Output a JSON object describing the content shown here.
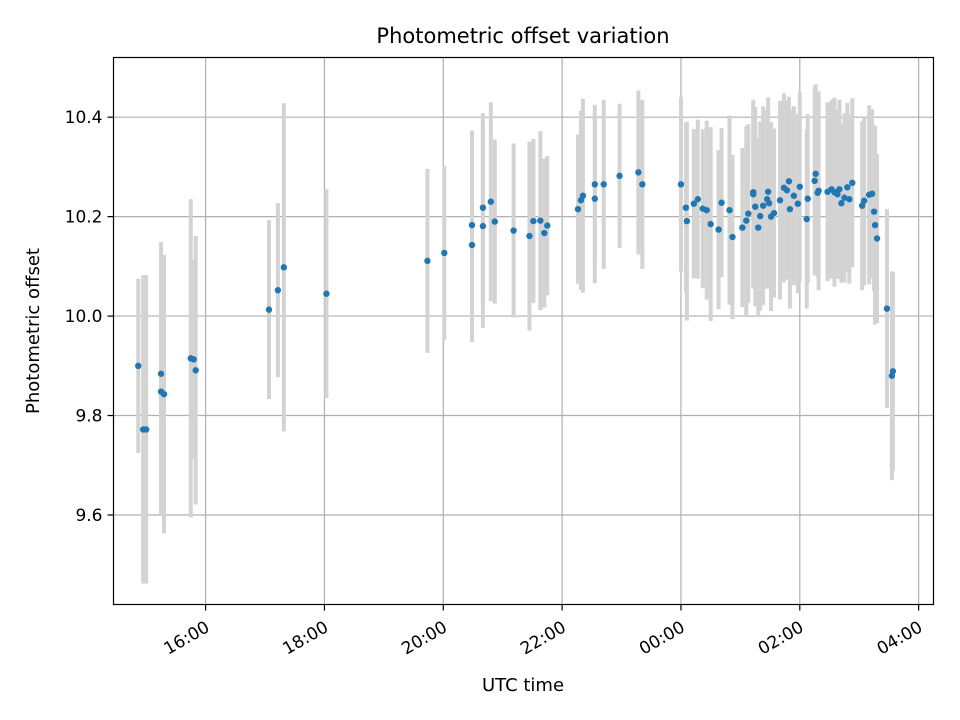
{
  "chart_data": {
    "type": "scatter",
    "title": "Photometric offset variation",
    "xlabel": "UTC time",
    "ylabel": "Photometric offset",
    "x_unit": "UTC time (hours, 16:00 of first day; values above 24 continue after midnight)",
    "xlim": [
      "14:27",
      "28:15"
    ],
    "ylim": [
      9.42,
      10.52
    ],
    "grid": true,
    "x_ticks": [
      {
        "t": "16:00",
        "label": "16:00"
      },
      {
        "t": "18:00",
        "label": "18:00"
      },
      {
        "t": "20:00",
        "label": "20:00"
      },
      {
        "t": "22:00",
        "label": "22:00"
      },
      {
        "t": "24:00",
        "label": "00:00"
      },
      {
        "t": "26:00",
        "label": "02:00"
      },
      {
        "t": "28:00",
        "label": "04:00"
      }
    ],
    "y_ticks": [
      {
        "v": 9.6,
        "label": "9.6"
      },
      {
        "v": 9.8,
        "label": "9.8"
      },
      {
        "v": 10.0,
        "label": "10.0"
      },
      {
        "v": 10.2,
        "label": "10.2"
      },
      {
        "v": 10.4,
        "label": "10.4"
      }
    ],
    "colors": {
      "point": "#1f77b4",
      "errorbar": "#d3d3d3",
      "grid": "#b0b0b0",
      "axes": "#000000"
    },
    "points": [
      {
        "t": "14:52",
        "y": 9.9,
        "err": 0.175
      },
      {
        "t": "14:57",
        "y": 9.772,
        "err": 0.31
      },
      {
        "t": "15:00",
        "y": 9.772,
        "err": 0.31
      },
      {
        "t": "15:15",
        "y": 9.884,
        "err": 0.265
      },
      {
        "t": "15:15",
        "y": 9.848,
        "err": 0.25
      },
      {
        "t": "15:18",
        "y": 9.843,
        "err": 0.28
      },
      {
        "t": "15:45",
        "y": 9.915,
        "err": 0.32
      },
      {
        "t": "15:48",
        "y": 9.913,
        "err": 0.2
      },
      {
        "t": "15:50",
        "y": 9.891,
        "err": 0.27
      },
      {
        "t": "17:04",
        "y": 10.013,
        "err": 0.18
      },
      {
        "t": "17:13",
        "y": 10.052,
        "err": 0.175
      },
      {
        "t": "17:19",
        "y": 10.098,
        "err": 0.33
      },
      {
        "t": "18:02",
        "y": 10.045,
        "err": 0.21
      },
      {
        "t": "19:44",
        "y": 10.111,
        "err": 0.185
      },
      {
        "t": "20:01",
        "y": 10.127,
        "err": 0.175
      },
      {
        "t": "20:29",
        "y": 10.143,
        "err": 0.195
      },
      {
        "t": "20:29",
        "y": 10.183,
        "err": 0.19
      },
      {
        "t": "20:40",
        "y": 10.181,
        "err": 0.205
      },
      {
        "t": "20:40",
        "y": 10.218,
        "err": 0.19
      },
      {
        "t": "20:48",
        "y": 10.23,
        "err": 0.2
      },
      {
        "t": "20:52",
        "y": 10.19,
        "err": 0.165
      },
      {
        "t": "21:11",
        "y": 10.172,
        "err": 0.175
      },
      {
        "t": "21:27",
        "y": 10.161,
        "err": 0.19
      },
      {
        "t": "21:31",
        "y": 10.191,
        "err": 0.165
      },
      {
        "t": "21:38",
        "y": 10.192,
        "err": 0.18
      },
      {
        "t": "21:42",
        "y": 10.167,
        "err": 0.15
      },
      {
        "t": "21:45",
        "y": 10.182,
        "err": 0.14
      },
      {
        "t": "22:16",
        "y": 10.215,
        "err": 0.15
      },
      {
        "t": "22:19",
        "y": 10.233,
        "err": 0.18
      },
      {
        "t": "22:21",
        "y": 10.242,
        "err": 0.195
      },
      {
        "t": "22:33",
        "y": 10.236,
        "err": 0.17
      },
      {
        "t": "22:33",
        "y": 10.265,
        "err": 0.16
      },
      {
        "t": "22:42",
        "y": 10.265,
        "err": 0.17
      },
      {
        "t": "22:58",
        "y": 10.282,
        "err": 0.145
      },
      {
        "t": "23:17",
        "y": 10.289,
        "err": 0.165
      },
      {
        "t": "23:21",
        "y": 10.265,
        "err": 0.17
      },
      {
        "t": "24:00",
        "y": 10.265,
        "err": 0.175
      },
      {
        "t": "24:05",
        "y": 10.218,
        "err": 0.17
      },
      {
        "t": "24:06",
        "y": 10.191,
        "err": 0.2
      },
      {
        "t": "24:13",
        "y": 10.226,
        "err": 0.15
      },
      {
        "t": "24:17",
        "y": 10.235,
        "err": 0.16
      },
      {
        "t": "24:22",
        "y": 10.216,
        "err": 0.16
      },
      {
        "t": "24:26",
        "y": 10.213,
        "err": 0.18
      },
      {
        "t": "24:30",
        "y": 10.185,
        "err": 0.195
      },
      {
        "t": "24:38",
        "y": 10.174,
        "err": 0.16
      },
      {
        "t": "24:41",
        "y": 10.228,
        "err": 0.15
      },
      {
        "t": "24:49",
        "y": 10.213,
        "err": 0.19
      },
      {
        "t": "24:52",
        "y": 10.159,
        "err": 0.165
      },
      {
        "t": "25:02",
        "y": 10.178,
        "err": 0.16
      },
      {
        "t": "25:06",
        "y": 10.192,
        "err": 0.19
      },
      {
        "t": "25:08",
        "y": 10.206,
        "err": 0.18
      },
      {
        "t": "25:13",
        "y": 10.249,
        "err": 0.17
      },
      {
        "t": "25:13",
        "y": 10.245,
        "err": 0.19
      },
      {
        "t": "25:15",
        "y": 10.22,
        "err": 0.2
      },
      {
        "t": "25:18",
        "y": 10.178,
        "err": 0.18
      },
      {
        "t": "25:20",
        "y": 10.201,
        "err": 0.19
      },
      {
        "t": "25:23",
        "y": 10.222,
        "err": 0.2
      },
      {
        "t": "25:27",
        "y": 10.235,
        "err": 0.18
      },
      {
        "t": "25:28",
        "y": 10.25,
        "err": 0.19
      },
      {
        "t": "25:29",
        "y": 10.227,
        "err": 0.15
      },
      {
        "t": "25:31",
        "y": 10.2,
        "err": 0.19
      },
      {
        "t": "25:34",
        "y": 10.207,
        "err": 0.17
      },
      {
        "t": "25:40",
        "y": 10.233,
        "err": 0.2
      },
      {
        "t": "25:44",
        "y": 10.258,
        "err": 0.19
      },
      {
        "t": "25:47",
        "y": 10.253,
        "err": 0.18
      },
      {
        "t": "25:49",
        "y": 10.271,
        "err": 0.17
      },
      {
        "t": "25:50",
        "y": 10.215,
        "err": 0.2
      },
      {
        "t": "25:54",
        "y": 10.242,
        "err": 0.18
      },
      {
        "t": "25:58",
        "y": 10.226,
        "err": 0.18
      },
      {
        "t": "26:00",
        "y": 10.26,
        "err": 0.19
      },
      {
        "t": "26:07",
        "y": 10.195,
        "err": 0.18
      },
      {
        "t": "26:08",
        "y": 10.236,
        "err": 0.17
      },
      {
        "t": "26:15",
        "y": 10.272,
        "err": 0.19
      },
      {
        "t": "26:16",
        "y": 10.286,
        "err": 0.18
      },
      {
        "t": "26:18",
        "y": 10.248,
        "err": 0.17
      },
      {
        "t": "26:19",
        "y": 10.252,
        "err": 0.2
      },
      {
        "t": "26:28",
        "y": 10.25,
        "err": 0.18
      },
      {
        "t": "26:32",
        "y": 10.255,
        "err": 0.18
      },
      {
        "t": "26:35",
        "y": 10.249,
        "err": 0.19
      },
      {
        "t": "26:38",
        "y": 10.245,
        "err": 0.17
      },
      {
        "t": "26:40",
        "y": 10.255,
        "err": 0.18
      },
      {
        "t": "26:42",
        "y": 10.227,
        "err": 0.16
      },
      {
        "t": "26:45",
        "y": 10.238,
        "err": 0.17
      },
      {
        "t": "26:48",
        "y": 10.259,
        "err": 0.17
      },
      {
        "t": "26:50",
        "y": 10.235,
        "err": 0.17
      },
      {
        "t": "26:53",
        "y": 10.268,
        "err": 0.17
      },
      {
        "t": "27:03",
        "y": 10.222,
        "err": 0.17
      },
      {
        "t": "27:05",
        "y": 10.232,
        "err": 0.17
      },
      {
        "t": "27:10",
        "y": 10.244,
        "err": 0.18
      },
      {
        "t": "27:13",
        "y": 10.246,
        "err": 0.17
      },
      {
        "t": "27:15",
        "y": 10.21,
        "err": 0.16
      },
      {
        "t": "27:16",
        "y": 10.183,
        "err": 0.2
      },
      {
        "t": "27:18",
        "y": 10.156,
        "err": 0.17
      },
      {
        "t": "27:28",
        "y": 10.015,
        "err": 0.2
      },
      {
        "t": "27:33",
        "y": 9.88,
        "err": 0.21
      },
      {
        "t": "27:34",
        "y": 9.889,
        "err": 0.2
      }
    ]
  }
}
